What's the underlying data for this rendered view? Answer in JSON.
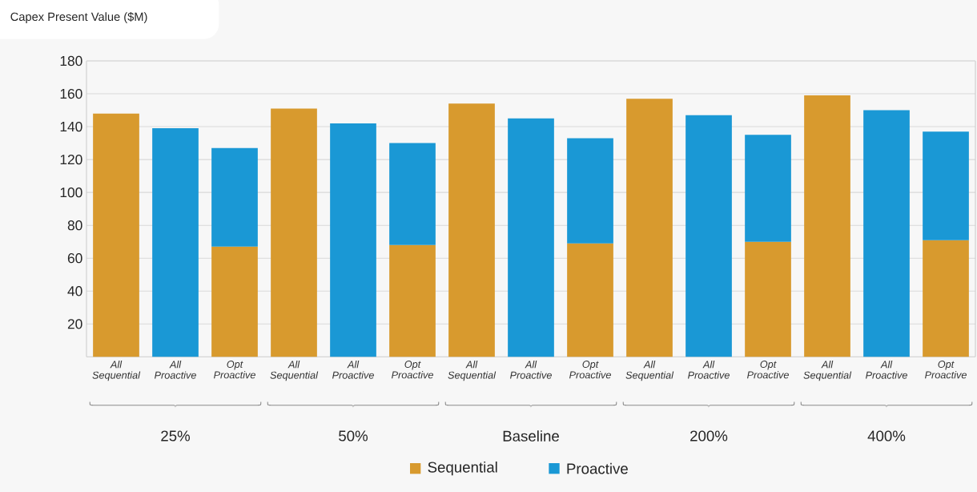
{
  "chart_data": {
    "type": "bar",
    "stacked": true,
    "title": "Capex Present Value ($M)",
    "categories": [
      "All Sequential",
      "All Proactive",
      "Opt Proactive",
      "All Sequential",
      "All Proactive",
      "Opt Proactive",
      "All Sequential",
      "All Proactive",
      "Opt Proactive",
      "All Sequential",
      "All Proactive",
      "Opt Proactive",
      "All Sequential",
      "All Proactive",
      "Opt Proactive"
    ],
    "series": [
      {
        "name": "Sequential",
        "color": "#d89a2e",
        "values": [
          148,
          null,
          67,
          151,
          null,
          68,
          154,
          null,
          69,
          157,
          null,
          70,
          159,
          null,
          71
        ]
      },
      {
        "name": "Proactive",
        "color": "#1a98d5",
        "values": [
          null,
          139,
          60,
          null,
          142,
          62,
          null,
          145,
          64,
          null,
          147,
          65,
          null,
          150,
          66
        ]
      }
    ],
    "annotations": [
      "25%",
      "50%",
      "Baseline",
      "200%",
      "400%"
    ],
    "ylim": [
      0,
      180
    ],
    "yticks": [
      20,
      40,
      60,
      80,
      100,
      120,
      140,
      160,
      180
    ],
    "grid": "y",
    "legend": "bottom"
  }
}
